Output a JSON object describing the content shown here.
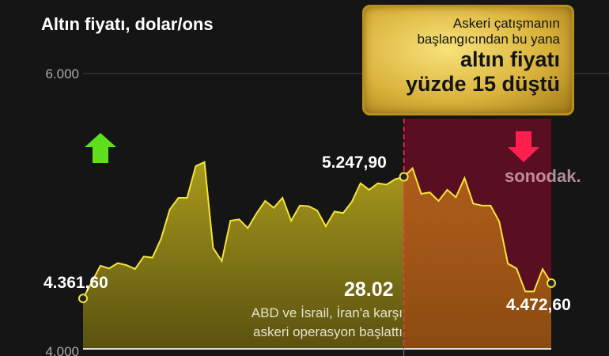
{
  "title": "Altın fiyatı, dolar/ons",
  "callout": {
    "line1": "Askeri çatışmanın",
    "line2": "başlangıcından bu yana",
    "line3": "altın fiyatı",
    "line4": "yüzde 15 düştü"
  },
  "watermark": "sonodak.",
  "colors": {
    "line": "#f5e43a",
    "fill_before": "#a89a1c",
    "fill_after": "#c2701a",
    "after_region": "#5a0e22",
    "up_arrow": "#5fe01f",
    "down_arrow": "#ff1f4e",
    "event_line": "#ff3355"
  },
  "chart_data": {
    "type": "area",
    "title": "Altın fiyatı, dolar/ons",
    "ylim": [
      4000,
      6000
    ],
    "yticks": [
      "4.000",
      "6.000"
    ],
    "grid": true,
    "values": [
      4362,
      4480,
      4600,
      4580,
      4619,
      4605,
      4576,
      4667,
      4659,
      4797,
      5009,
      5095,
      5095,
      5326,
      5355,
      4730,
      4634,
      4928,
      4938,
      4874,
      4980,
      5072,
      5022,
      5095,
      4928,
      5038,
      5034,
      5003,
      4888,
      4995,
      4984,
      5066,
      5201,
      5153,
      5201,
      5191,
      5230,
      5248,
      5310,
      5124,
      5134,
      5072,
      5153,
      5099,
      5239,
      5053,
      5038,
      5038,
      4922,
      4615,
      4580,
      4413,
      4413,
      4576,
      4473
    ],
    "event_index": 37,
    "annotations": {
      "start": "4.361,60",
      "peak_event": "5.247,90",
      "end": "4.472,60",
      "event_date": "28.02",
      "event_text1": "ABD ve İsrail, İran'a karşı",
      "event_text2": "askeri operasyon başlattı"
    }
  }
}
